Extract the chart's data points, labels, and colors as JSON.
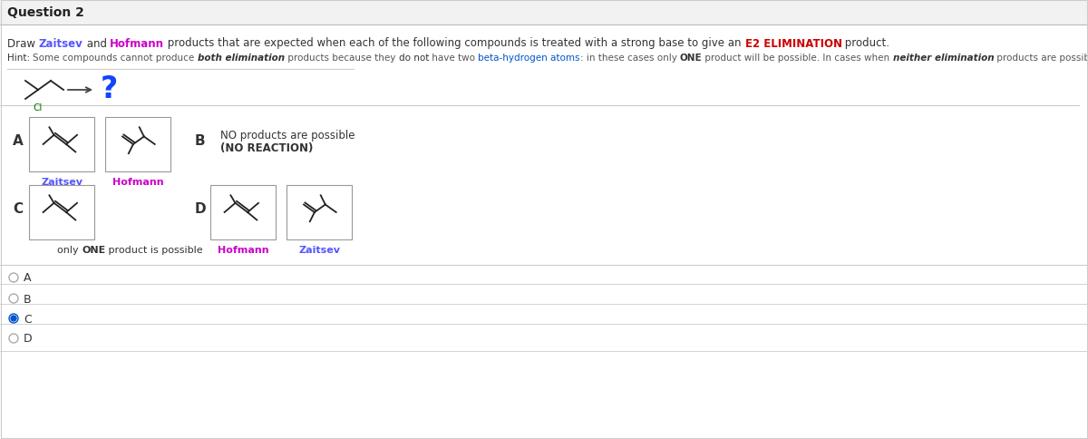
{
  "title": "Question 2",
  "zaitsev_color": "#5555ff",
  "hofmann_color": "#CC00CC",
  "e2_color": "#CC0000",
  "beta_color": "#0055cc",
  "zaitsev_label": "Zaitsev",
  "hofmann_label": "Hofmann",
  "no_products_line1": "NO products are possible",
  "no_products_line2": "(NO REACTION)",
  "one_product_text": "only ONE product is possible",
  "radio_labels": [
    "A",
    "B",
    "C",
    "D"
  ],
  "selected_radio": "C",
  "bg_color": "#ffffff",
  "header_bg": "#f2f2f2",
  "box_border_color": "#999999",
  "radio_selected_color": "#0055cc",
  "separator_color": "#cccccc"
}
